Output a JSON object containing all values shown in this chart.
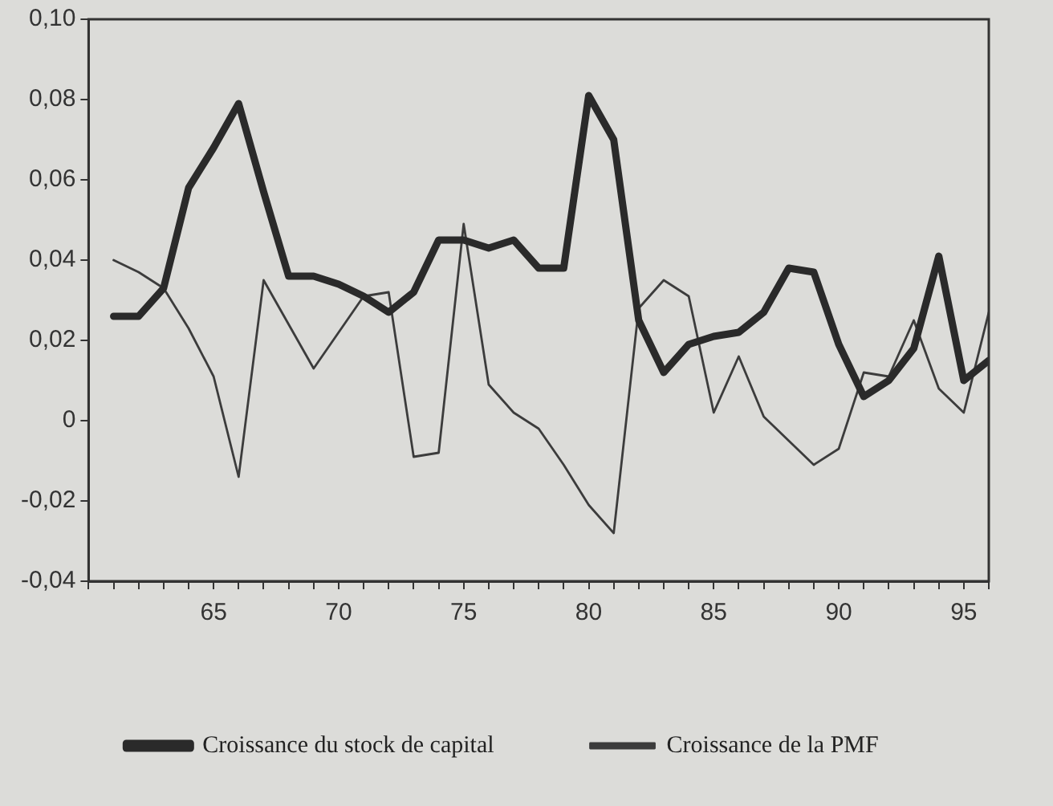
{
  "chart_data": {
    "type": "line",
    "x": [
      61,
      62,
      63,
      64,
      65,
      66,
      67,
      68,
      69,
      70,
      71,
      72,
      73,
      74,
      75,
      76,
      77,
      78,
      79,
      80,
      81,
      82,
      83,
      84,
      85,
      86,
      87,
      88,
      89,
      90,
      91,
      92,
      93,
      94,
      95,
      96
    ],
    "series": [
      {
        "name": "Croissance du stock de capital",
        "color": "#2a2a2a",
        "values": [
          0.026,
          0.026,
          0.033,
          0.058,
          0.068,
          0.079,
          0.057,
          0.036,
          0.036,
          0.034,
          0.031,
          0.027,
          0.032,
          0.045,
          0.045,
          0.043,
          0.045,
          0.038,
          0.038,
          0.081,
          0.07,
          0.025,
          0.012,
          0.019,
          0.021,
          0.022,
          0.027,
          0.038,
          0.037,
          0.019,
          0.006,
          0.01,
          0.018,
          0.041,
          0.01,
          0.015
        ]
      },
      {
        "name": "Croissance de la PMF",
        "color": "#3c3c3c",
        "values": [
          0.04,
          0.037,
          0.033,
          0.023,
          0.011,
          -0.014,
          0.035,
          0.024,
          0.013,
          0.022,
          0.031,
          0.032,
          -0.009,
          -0.008,
          0.049,
          0.009,
          0.002,
          -0.002,
          -0.011,
          -0.021,
          -0.028,
          0.028,
          0.035,
          0.031,
          0.002,
          0.016,
          0.001,
          -0.005,
          -0.011,
          -0.007,
          0.012,
          0.011,
          0.025,
          0.008,
          0.002,
          0.027
        ]
      }
    ],
    "xlim": [
      60,
      96
    ],
    "xticks": [
      {
        "value": 60,
        "label": null
      },
      {
        "value": 61,
        "label": null
      },
      {
        "value": 62,
        "label": null
      },
      {
        "value": 63,
        "label": null
      },
      {
        "value": 64,
        "label": null
      },
      65,
      {
        "value": 66,
        "label": null
      },
      {
        "value": 67,
        "label": null
      },
      {
        "value": 68,
        "label": null
      },
      {
        "value": 69,
        "label": null
      },
      70,
      {
        "value": 71,
        "label": null
      },
      {
        "value": 72,
        "label": null
      },
      {
        "value": 73,
        "label": null
      },
      {
        "value": 74,
        "label": null
      },
      75,
      {
        "value": 76,
        "label": null
      },
      {
        "value": 77,
        "label": null
      },
      {
        "value": 78,
        "label": null
      },
      {
        "value": 79,
        "label": null
      },
      80,
      {
        "value": 81,
        "label": null
      },
      {
        "value": 82,
        "label": null
      },
      {
        "value": 83,
        "label": null
      },
      {
        "value": 84,
        "label": null
      },
      85,
      {
        "value": 86,
        "label": null
      },
      {
        "value": 87,
        "label": null
      },
      {
        "value": 88,
        "label": null
      },
      {
        "value": 89,
        "label": null
      },
      90,
      {
        "value": 91,
        "label": null
      },
      {
        "value": 92,
        "label": null
      },
      {
        "value": 93,
        "label": null
      },
      {
        "value": 94,
        "label": null
      },
      95,
      {
        "value": 96,
        "label": null
      }
    ],
    "ylim": [
      -0.04,
      0.1
    ],
    "yticks": [
      {
        "value": -0.04,
        "label": "-0,04"
      },
      {
        "value": -0.02,
        "label": "-0,02"
      },
      0,
      {
        "value": 0.02,
        "label": "0,02"
      },
      {
        "value": 0.04,
        "label": "0,04"
      },
      {
        "value": 0.06,
        "label": "0,06"
      },
      {
        "value": 0.08,
        "label": "0,08"
      },
      {
        "value": 0.1,
        "label": "0,10"
      }
    ],
    "grid": false,
    "legend": "bottom",
    "marker": "none",
    "line_style": "solid"
  }
}
